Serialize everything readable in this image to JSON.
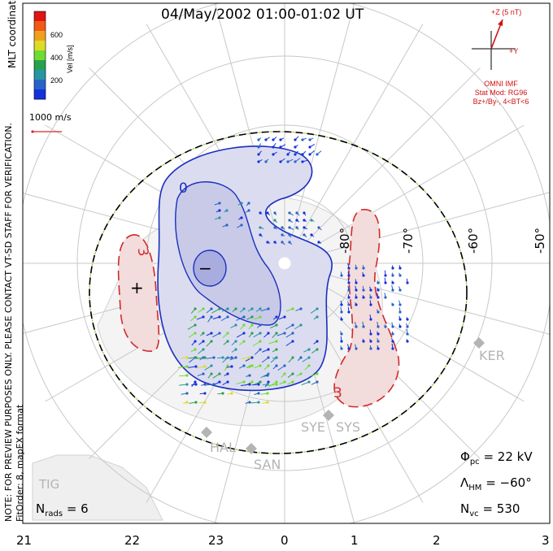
{
  "title": "04/May/2002 01:00-01:02 UT",
  "colorbar": {
    "label": "Vel [m/s]",
    "ticks": [
      "600",
      "400",
      "200"
    ],
    "colors": [
      "#e01414",
      "#f05a14",
      "#f0a01e",
      "#dcdc28",
      "#6edc32",
      "#28a050",
      "#2896a0",
      "#2864c8",
      "#1432dc"
    ]
  },
  "coords_label": "MLT coordinates",
  "scale_vector_label": "1000 m/s",
  "side_note": "NOTE: FOR PREVIEW PURPOSES ONLY. PLEASE CONTACT VT-SD STAFF FOR VERIFICATION.",
  "fit_info": "FitOrder: 8,  mapEX format",
  "imf": {
    "z_label": "+Z (5 nT)",
    "y_label": "+Y",
    "source": "OMNI IMF",
    "stat_mod": "Stat Mod: RG96",
    "stat_cond": "Bz+/By-, 4<BT<6",
    "color": "#d01010"
  },
  "latitude_labels": [
    "-80°",
    "-70°",
    "-60°",
    "-50°"
  ],
  "mlt_labels": [
    "21",
    "22",
    "23",
    "0",
    "1",
    "2",
    "3"
  ],
  "contour_labels": {
    "negative_center": "−",
    "positive_center": "+",
    "neg_zero": "0",
    "pos_three_a": "3",
    "pos_three_b": "3"
  },
  "stations": [
    "KER",
    "SYE",
    "SYS",
    "HAL",
    "SAN"
  ],
  "region_label": "TIG",
  "stats": {
    "phi_pc": {
      "symbol": "Φ",
      "sub": "pc",
      "value": "= 22 kV"
    },
    "lambda_hm": {
      "symbol": "Λ",
      "sub": "HM",
      "value": "= −60°"
    },
    "n_vc": {
      "symbol": "N",
      "sub": "vc",
      "value": "= 530"
    },
    "n_rads": {
      "symbol": "N",
      "sub": "rads",
      "value": "= 6"
    }
  },
  "colors": {
    "negative_cell": "#1a2fbf",
    "positive_cell": "#d22a2a",
    "negative_fill": "#dcdcf0",
    "positive_fill": "#f2dcdc",
    "grid": "#c8c8c8",
    "land": "#d2d2d2"
  }
}
